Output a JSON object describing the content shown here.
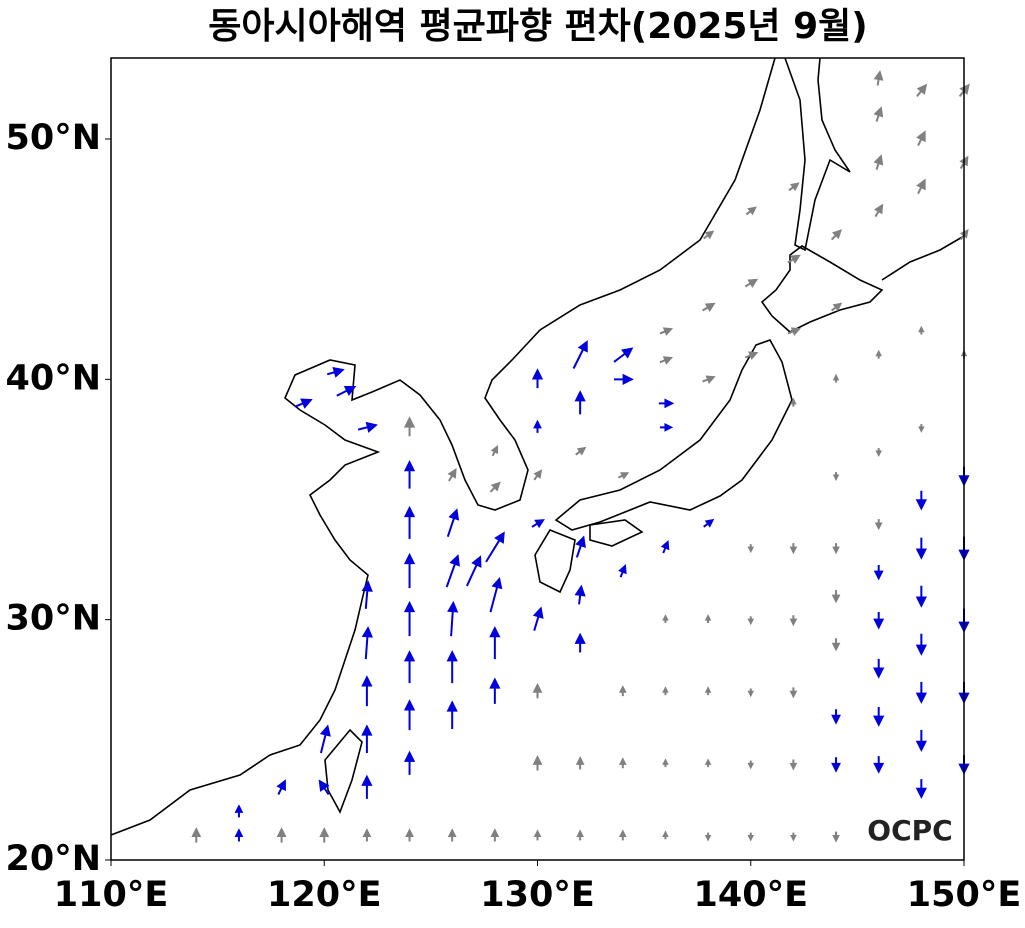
{
  "map": {
    "title": "동아시아해역 평균파향 편차(2025년 9월)",
    "logo": "OCPC",
    "xlim": [
      110,
      150
    ],
    "ylim": [
      20,
      53.37
    ],
    "xticks": [
      {
        "value": 110,
        "label": "110°E"
      },
      {
        "value": 120,
        "label": "120°E"
      },
      {
        "value": 130,
        "label": "130°E"
      },
      {
        "value": 140,
        "label": "140°E"
      },
      {
        "value": 150,
        "label": "150°E"
      }
    ],
    "yticks": [
      {
        "value": 20,
        "label": "20°N"
      },
      {
        "value": 30,
        "label": "30°N"
      },
      {
        "value": 40,
        "label": "40°N"
      },
      {
        "value": 50,
        "label": "50°N"
      }
    ],
    "vectors": {
      "significant": {
        "color": "#0000dd",
        "points": [
          [
            122,
            23,
            0,
            1
          ],
          [
            122,
            25,
            0,
            1.2
          ],
          [
            122,
            27,
            0,
            1.3
          ],
          [
            122,
            29,
            0.1,
            1.4
          ],
          [
            122,
            31,
            0.1,
            1.2
          ],
          [
            124,
            24,
            0,
            1
          ],
          [
            124,
            26,
            0,
            1.3
          ],
          [
            124,
            28,
            0,
            1.4
          ],
          [
            124,
            30,
            0,
            1.5
          ],
          [
            124,
            32,
            0,
            1.5
          ],
          [
            124,
            34,
            0,
            1.4
          ],
          [
            124,
            36,
            0,
            1.2
          ],
          [
            126,
            26,
            0,
            1.2
          ],
          [
            126,
            28,
            0,
            1.4
          ],
          [
            126,
            30,
            0.1,
            1.5
          ],
          [
            126,
            32,
            0.5,
            1.4
          ],
          [
            126,
            34,
            0.4,
            1.2
          ],
          [
            128,
            27,
            0,
            1.1
          ],
          [
            128,
            29,
            0,
            1.4
          ],
          [
            128,
            31,
            0.4,
            1.5
          ],
          [
            128,
            33,
            0.8,
            1.3
          ],
          [
            127,
            32,
            0.6,
            1.3
          ],
          [
            130,
            30,
            0.3,
            1
          ],
          [
            130,
            34,
            0.5,
            0.3
          ],
          [
            130,
            40,
            0,
            0.8
          ],
          [
            130,
            38,
            0,
            0.5
          ],
          [
            132,
            29,
            0,
            0.8
          ],
          [
            132,
            31,
            0.1,
            0.8
          ],
          [
            132,
            33,
            0.3,
            0.9
          ],
          [
            132,
            39,
            0,
            1
          ],
          [
            132,
            41,
            0.6,
            1.2
          ],
          [
            134,
            41,
            0.8,
            0.6
          ],
          [
            134,
            40,
            0.8,
            0
          ],
          [
            136,
            39,
            0.6,
            0
          ],
          [
            136,
            38,
            0.5,
            0
          ],
          [
            134,
            32,
            0.2,
            0.5
          ],
          [
            136,
            33,
            0.2,
            0.5
          ],
          [
            138,
            34,
            0.4,
            0.3
          ],
          [
            120,
            25,
            0.3,
            1.2
          ],
          [
            120,
            23,
            -0.4,
            0.6
          ],
          [
            118,
            23,
            0.3,
            0.6
          ],
          [
            116,
            22,
            0,
            0.5
          ],
          [
            116,
            21,
            0,
            0.5
          ],
          [
            119,
            39,
            0.7,
            0.3
          ],
          [
            121,
            39.5,
            0.8,
            0.4
          ],
          [
            122,
            38,
            0.8,
            0.2
          ],
          [
            120.5,
            40.3,
            0.7,
            0.2
          ],
          [
            146,
            32,
            0,
            -0.6
          ],
          [
            146,
            30,
            0,
            -0.7
          ],
          [
            146,
            28,
            0,
            -0.8
          ],
          [
            146,
            26,
            0,
            -0.8
          ],
          [
            146,
            24,
            0,
            -0.7
          ],
          [
            148,
            35,
            0,
            -0.8
          ],
          [
            148,
            33,
            0,
            -0.9
          ],
          [
            148,
            31,
            0,
            -0.9
          ],
          [
            148,
            29,
            0,
            -0.9
          ],
          [
            148,
            27,
            0,
            -0.9
          ],
          [
            148,
            25,
            0,
            -0.9
          ],
          [
            148,
            23,
            0,
            -0.8
          ],
          [
            150,
            36,
            0,
            -0.8
          ],
          [
            150,
            33,
            0,
            -1
          ],
          [
            150,
            30,
            0,
            -1
          ],
          [
            150,
            27,
            0,
            -0.9
          ],
          [
            150,
            24,
            0,
            -0.8
          ],
          [
            144,
            26,
            0,
            -0.6
          ],
          [
            144,
            24,
            0,
            -0.6
          ]
        ]
      },
      "other": {
        "color": "#808080",
        "points": [
          [
            114,
            21,
            0,
            0.6
          ],
          [
            118,
            21,
            0,
            0.6
          ],
          [
            120,
            21,
            0,
            0.6
          ],
          [
            122,
            21,
            0,
            0.5
          ],
          [
            124,
            21,
            0,
            0.5
          ],
          [
            126,
            21,
            0,
            0.5
          ],
          [
            128,
            21,
            0,
            0.5
          ],
          [
            130,
            21,
            0,
            0.4
          ],
          [
            132,
            21,
            0,
            0.4
          ],
          [
            134,
            21,
            0,
            0.4
          ],
          [
            136,
            21,
            0,
            0.3
          ],
          [
            138,
            21,
            0,
            -0.3
          ],
          [
            140,
            21,
            0,
            -0.3
          ],
          [
            142,
            21,
            0,
            -0.3
          ],
          [
            144,
            21,
            0,
            -0.4
          ],
          [
            130,
            24,
            0,
            0.6
          ],
          [
            132,
            24,
            0,
            0.5
          ],
          [
            134,
            24,
            0,
            0.4
          ],
          [
            136,
            24,
            0,
            0.3
          ],
          [
            138,
            24,
            0,
            0.3
          ],
          [
            140,
            24,
            0,
            -0.3
          ],
          [
            142,
            24,
            0,
            -0.4
          ],
          [
            130,
            27,
            0,
            0.6
          ],
          [
            134,
            27,
            0,
            0.4
          ],
          [
            136,
            27,
            0,
            0.3
          ],
          [
            138,
            27,
            0,
            0.3
          ],
          [
            140,
            27,
            0,
            -0.3
          ],
          [
            142,
            27,
            0,
            -0.4
          ],
          [
            144,
            29,
            0,
            -0.5
          ],
          [
            136,
            30,
            0,
            0.3
          ],
          [
            138,
            30,
            0,
            0.3
          ],
          [
            140,
            30,
            0,
            -0.3
          ],
          [
            142,
            30,
            0,
            -0.4
          ],
          [
            144,
            31,
            0,
            -0.5
          ],
          [
            140,
            33,
            0,
            -0.3
          ],
          [
            142,
            33,
            0,
            -0.4
          ],
          [
            144,
            33,
            0,
            -0.4
          ],
          [
            146,
            34,
            0,
            -0.4
          ],
          [
            144,
            36,
            0,
            -0.3
          ],
          [
            146,
            37,
            0,
            -0.3
          ],
          [
            148,
            38,
            0,
            -0.3
          ],
          [
            142,
            39,
            0,
            0.3
          ],
          [
            144,
            40,
            0,
            0.3
          ],
          [
            146,
            41,
            0,
            0.3
          ],
          [
            148,
            42,
            0,
            0.3
          ],
          [
            150,
            41,
            0,
            0.3
          ],
          [
            130,
            36,
            0.3,
            0.4
          ],
          [
            132,
            37,
            0.4,
            0.3
          ],
          [
            134,
            36,
            0.4,
            0.2
          ],
          [
            136,
            42,
            0.5,
            0.2
          ],
          [
            138,
            43,
            0.5,
            0.3
          ],
          [
            140,
            44,
            0.5,
            0.3
          ],
          [
            142,
            45,
            0.5,
            0.3
          ],
          [
            144,
            46,
            0.4,
            0.4
          ],
          [
            146,
            47,
            0.3,
            0.5
          ],
          [
            148,
            48,
            0.3,
            0.6
          ],
          [
            146,
            49,
            0.2,
            0.6
          ],
          [
            148,
            50,
            0.3,
            0.6
          ],
          [
            146,
            51,
            0.2,
            0.6
          ],
          [
            148,
            52,
            0.4,
            0.5
          ],
          [
            150,
            52,
            0.4,
            0.5
          ],
          [
            146,
            52.5,
            0.1,
            0.6
          ],
          [
            150,
            49,
            0.3,
            0.5
          ],
          [
            150,
            46,
            0.3,
            0.4
          ],
          [
            142,
            42,
            0.5,
            0.2
          ],
          [
            144,
            43,
            0.4,
            0.3
          ],
          [
            140,
            41,
            0.5,
            0.2
          ],
          [
            138,
            46,
            0.4,
            0.3
          ],
          [
            140,
            47,
            0.4,
            0.3
          ],
          [
            142,
            48,
            0.4,
            0.3
          ],
          [
            138,
            40,
            0.5,
            0.2
          ],
          [
            136,
            40.8,
            0.5,
            0.2
          ],
          [
            126,
            36,
            0.3,
            0.5
          ],
          [
            128,
            35.5,
            0.4,
            0.4
          ],
          [
            124,
            38,
            0,
            0.8
          ],
          [
            128,
            37,
            0.2,
            0.4
          ]
        ]
      }
    }
  }
}
